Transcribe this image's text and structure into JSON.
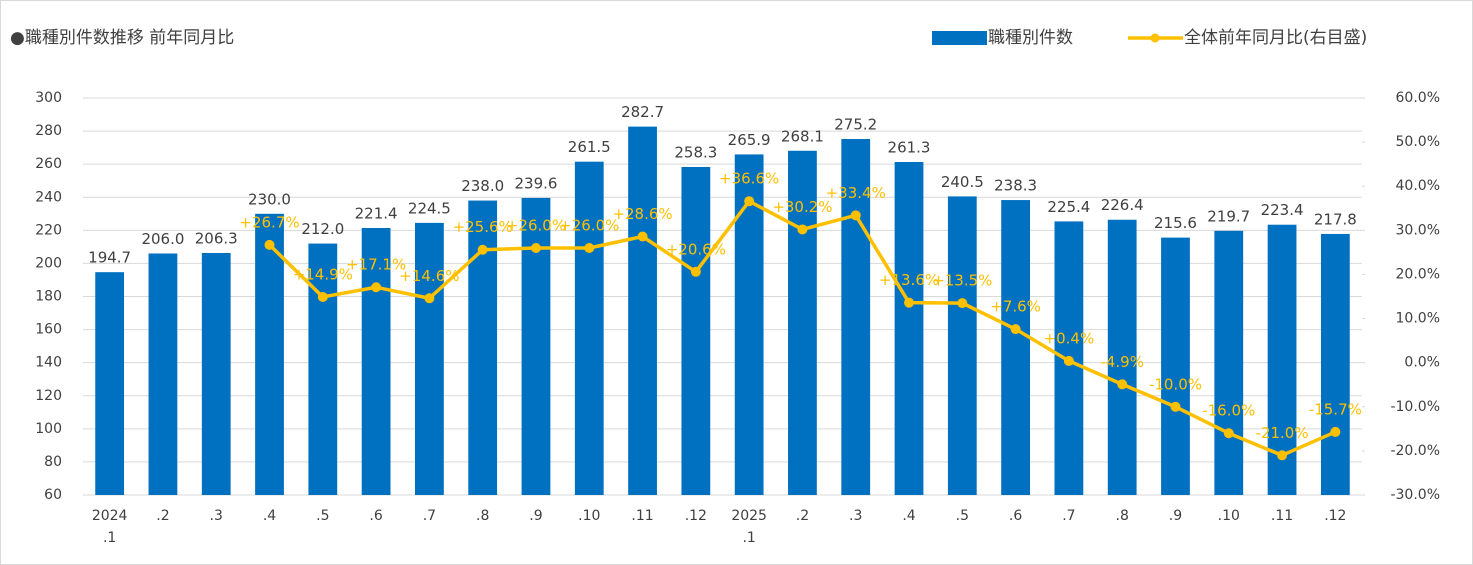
{
  "chart_data": {
    "type": "bar-line",
    "title": "●職種別件数推移 前年同月比",
    "categories": [
      "2024\n.1",
      ".2",
      ".3",
      ".4",
      ".5",
      ".6",
      ".7",
      ".8",
      ".9",
      ".10",
      ".11",
      ".12",
      "2025\n.1",
      ".2",
      ".3",
      ".4",
      ".5",
      ".6",
      ".7",
      ".8",
      ".9",
      ".10",
      ".11",
      ".12"
    ],
    "series": [
      {
        "name": "職種別件数",
        "color": "#0070c0",
        "type": "bar",
        "values": [
          194.7,
          206.0,
          206.3,
          230.0,
          212.0,
          221.4,
          224.5,
          238.0,
          239.6,
          261.5,
          282.7,
          258.3,
          265.9,
          268.1,
          275.2,
          261.3,
          240.5,
          238.3,
          225.4,
          226.4,
          215.6,
          219.7,
          223.4,
          217.8
        ],
        "value_labels": [
          "194.7",
          "206.0",
          "206.3",
          "230.0",
          "212.0",
          "221.4",
          "224.5",
          "238.0",
          "239.6",
          "261.5",
          "282.7",
          "258.3",
          "265.9",
          "268.1",
          "275.2",
          "261.3",
          "240.5",
          "238.3",
          "225.4",
          "226.4",
          "215.6",
          "219.7",
          "223.4",
          "217.8"
        ]
      },
      {
        "name": "全体前年同月比(右目盛)",
        "color": "#ffc000",
        "type": "line",
        "axis": "y2",
        "values": [
          null,
          null,
          null,
          26.7,
          14.9,
          17.1,
          14.6,
          25.6,
          26.0,
          26.0,
          28.6,
          20.6,
          36.6,
          30.2,
          33.4,
          13.6,
          13.5,
          7.6,
          0.4,
          -4.9,
          -10.0,
          -16.0,
          -21.0,
          -15.7
        ],
        "value_labels": [
          null,
          null,
          null,
          "+26.7%",
          "+14.9%",
          "+17.1%",
          "+14.6%",
          "+25.6%",
          "+26.0%",
          "+26.0%",
          "+28.6%",
          "+20.6%",
          "+36.6%",
          "+30.2%",
          "+33.4%",
          "+13.6%",
          "+13.5%",
          "+7.6%",
          "+0.4%",
          "-4.9%",
          "-10.0%",
          "-16.0%",
          "-21.0%",
          "-15.7%"
        ]
      }
    ],
    "ylim": [
      60,
      300
    ],
    "yticks": [
      60,
      80,
      100,
      120,
      140,
      160,
      180,
      200,
      220,
      240,
      260,
      280,
      300
    ],
    "y2lim": [
      -30,
      60
    ],
    "y2ticks": [
      {
        "value": -30,
        "label": "-30.0%"
      },
      {
        "value": -20,
        "label": "-20.0%"
      },
      {
        "value": -10,
        "label": "-10.0%"
      },
      {
        "value": 0,
        "label": "0.0%"
      },
      {
        "value": 10,
        "label": "10.0%"
      },
      {
        "value": 20,
        "label": "20.0%"
      },
      {
        "value": 30,
        "label": "30.0%"
      },
      {
        "value": 40,
        "label": "40.0%"
      },
      {
        "value": 50,
        "label": "50.0%"
      },
      {
        "value": 60,
        "label": "60.0%"
      }
    ],
    "grid": true,
    "legend": "top-right"
  }
}
